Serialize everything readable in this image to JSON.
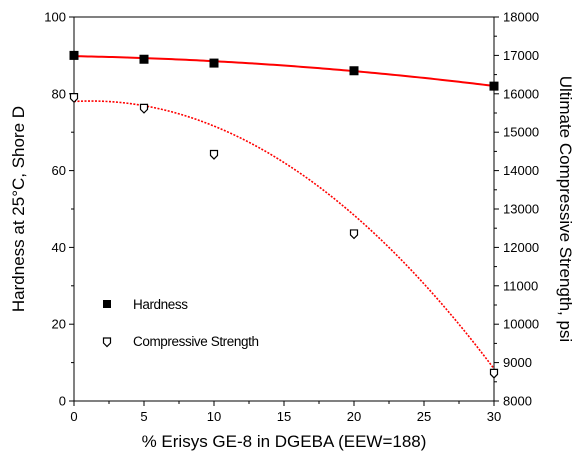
{
  "chart_data": {
    "type": "scatter",
    "xlabel": "% Erisys GE-8 in DGEBA (EEW=188)",
    "ylabel_left": "Hardness at 25°C, Shore D",
    "ylabel_right": "Ultimate Compressive Strength, psi",
    "xlim": [
      0,
      30
    ],
    "ylim_left": [
      0,
      100
    ],
    "ylim_right": [
      8000,
      18000
    ],
    "x_ticks": [
      0,
      5,
      10,
      15,
      20,
      25,
      30
    ],
    "y_left_ticks": [
      0,
      20,
      40,
      60,
      80,
      100
    ],
    "y_right_ticks": [
      8000,
      9000,
      10000,
      11000,
      12000,
      13000,
      14000,
      15000,
      16000,
      17000,
      18000
    ],
    "grid": false,
    "legend_position": "lower-left",
    "series": [
      {
        "name": "Hardness",
        "axis": "left",
        "marker": "filled-square",
        "color": "#000000",
        "x": [
          0,
          5,
          10,
          20,
          30
        ],
        "y": [
          90,
          89,
          88,
          86,
          82
        ],
        "fit": {
          "style": "solid",
          "color": "#ff0000",
          "coefficients": [
            89.8,
            -0.0667,
            -0.0064
          ]
        }
      },
      {
        "name": "Compressive Strength",
        "axis": "right",
        "marker": "open-pentagon",
        "color": "#000000",
        "x": [
          0,
          5,
          10,
          20,
          30
        ],
        "y": [
          15900,
          15620,
          14420,
          12350,
          8720
        ],
        "fit": {
          "style": "dotted",
          "color": "#ff0000",
          "coefficients": [
            15800,
            20,
            -8.4
          ]
        }
      }
    ]
  }
}
